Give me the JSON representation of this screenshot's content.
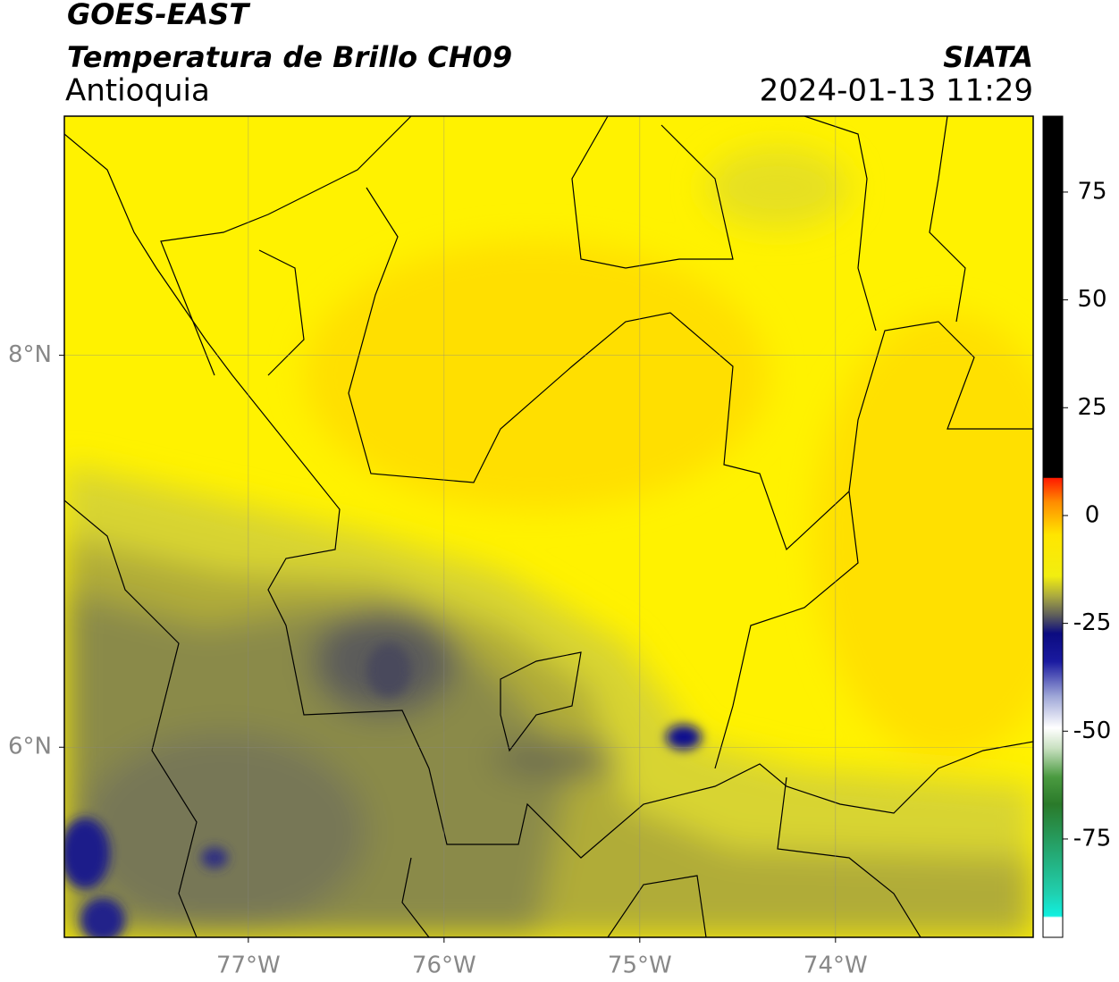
{
  "header": {
    "line1": "GOES-EAST",
    "title": "Temperatura de Brillo CH09",
    "region": "Antioquia",
    "source": "SIATA",
    "datetime": "2024-01-13 11:29"
  },
  "map": {
    "xlim": [
      -77.94,
      -72.99
    ],
    "ylim": [
      5.03,
      9.22
    ],
    "xticks": [
      {
        "value": -77,
        "label": "77°W"
      },
      {
        "value": -76,
        "label": "76°W"
      },
      {
        "value": -75,
        "label": "75°W"
      },
      {
        "value": -74,
        "label": "74°W"
      }
    ],
    "yticks": [
      {
        "value": 6,
        "label": "6°N"
      },
      {
        "value": 8,
        "label": "8°N"
      }
    ],
    "grid": true
  },
  "colorbar": {
    "lim": [
      -97.8,
      92.6
    ],
    "ticks": [
      -75,
      -50,
      -25,
      0,
      25,
      50,
      75
    ]
  }
}
